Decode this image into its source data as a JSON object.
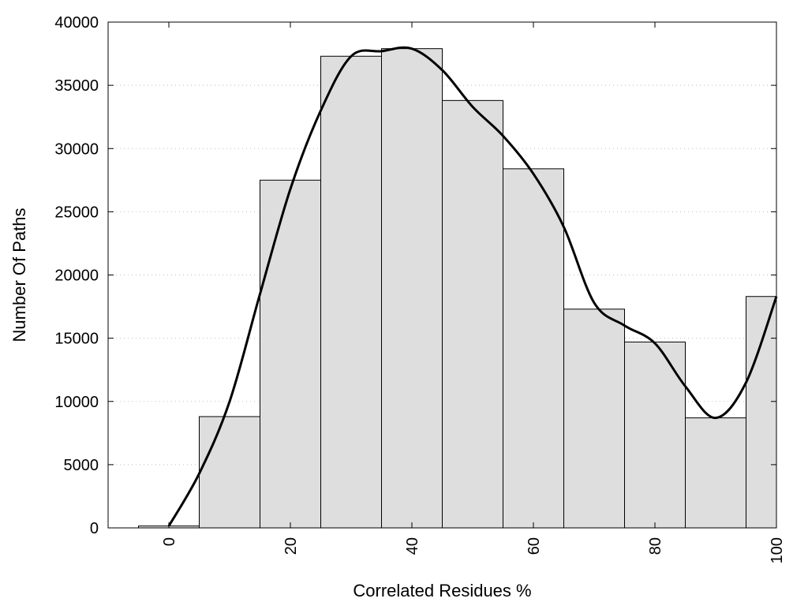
{
  "chart_data": {
    "type": "bar",
    "title": "",
    "xlabel": "Correlated Residues %",
    "ylabel": "Number Of Paths",
    "categories": [
      0,
      10,
      20,
      30,
      40,
      50,
      60,
      70,
      80,
      90,
      100
    ],
    "values": [
      150,
      8800,
      27500,
      37300,
      37900,
      33800,
      28400,
      17300,
      14700,
      8700,
      18300
    ],
    "bin_width": 10,
    "xlim": [
      -10,
      100
    ],
    "ylim": [
      0,
      40000
    ],
    "xticks": [
      0,
      20,
      40,
      60,
      80,
      100
    ],
    "yticks": [
      0,
      5000,
      10000,
      15000,
      20000,
      25000,
      30000,
      35000,
      40000
    ],
    "grid": "horizontal dotted",
    "bar_color": "#dedede",
    "curve": {
      "type": "smoothed line",
      "color": "#000000",
      "x": [
        0,
        5,
        10,
        15,
        20,
        25,
        30,
        35,
        40,
        45,
        50,
        55,
        60,
        65,
        70,
        75,
        80,
        85,
        90,
        95,
        100
      ],
      "y": [
        150,
        4300,
        10000,
        18500,
        26800,
        33000,
        37300,
        37700,
        37900,
        36200,
        33300,
        31000,
        28000,
        23800,
        17800,
        16000,
        14600,
        11200,
        8700,
        11500,
        18300
      ]
    }
  }
}
